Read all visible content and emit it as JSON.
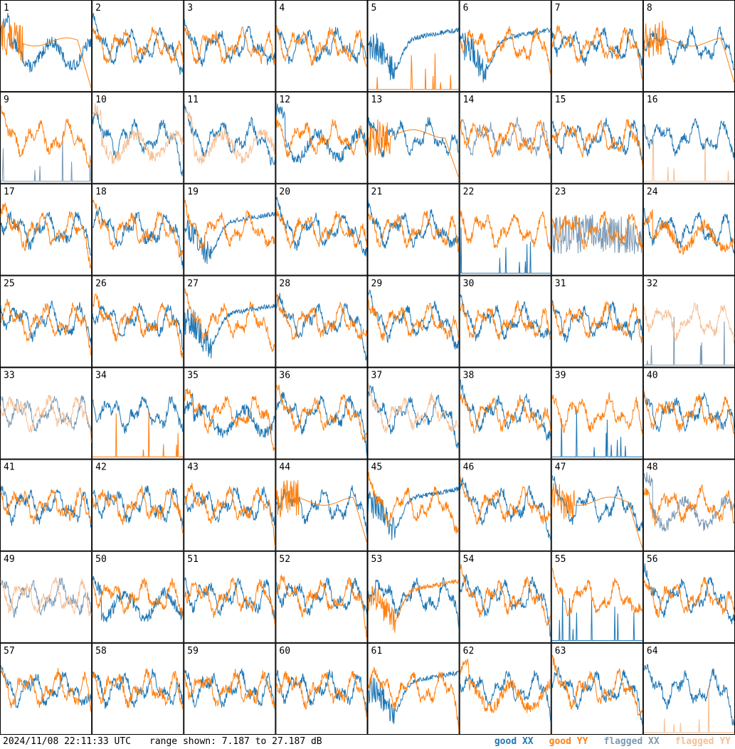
{
  "chart_data": {
    "type": "line",
    "layout": "8x8 small multiples of antenna spectra",
    "grid": "off",
    "ylim_db": [
      7.187,
      27.187
    ],
    "range_text": "range shown: 7.187 to 27.187 dB",
    "timestamp": "2024/11/08 22:11:33 UTC",
    "legend": [
      {
        "label": "good XX",
        "color": "#1f77b4"
      },
      {
        "label": "good YY",
        "color": "#ff7f0e"
      },
      {
        "label": "flagged XX",
        "color": "#7b99b3"
      },
      {
        "label": "flagged YY",
        "color": "#f6bf94"
      }
    ],
    "panels": [
      {
        "label": "1",
        "xx": "low",
        "yy": "droop"
      },
      {
        "label": "2"
      },
      {
        "label": "3"
      },
      {
        "label": "4"
      },
      {
        "label": "5",
        "xx": "dip",
        "yy": "dead"
      },
      {
        "label": "6",
        "xx": "dip"
      },
      {
        "label": "7"
      },
      {
        "label": "8",
        "yy": "droop"
      },
      {
        "label": "9",
        "xx": "dead",
        "xx_flag": true
      },
      {
        "label": "10",
        "yy_flag": true,
        "yy": "low"
      },
      {
        "label": "11",
        "yy_flag": true,
        "yy": "low"
      },
      {
        "label": "12",
        "xx": "low"
      },
      {
        "label": "13",
        "yy": "droop"
      },
      {
        "label": "14",
        "xx_flag": true
      },
      {
        "label": "15"
      },
      {
        "label": "16",
        "yy": "dead",
        "yy_flag": true
      },
      {
        "label": "17"
      },
      {
        "label": "18"
      },
      {
        "label": "19",
        "xx": "dip"
      },
      {
        "label": "20"
      },
      {
        "label": "21"
      },
      {
        "label": "22",
        "xx": "dead"
      },
      {
        "label": "23",
        "xx": "noisy",
        "xx_flag": true
      },
      {
        "label": "24",
        "yy": "low"
      },
      {
        "label": "25"
      },
      {
        "label": "26"
      },
      {
        "label": "27",
        "xx": "dip"
      },
      {
        "label": "28"
      },
      {
        "label": "29"
      },
      {
        "label": "30"
      },
      {
        "label": "31"
      },
      {
        "label": "32",
        "xx": "dead",
        "xx_flag": true,
        "yy_flag": true
      },
      {
        "label": "33",
        "xx_flag": true,
        "yy_flag": true
      },
      {
        "label": "34",
        "yy": "dead"
      },
      {
        "label": "35",
        "xx": "low"
      },
      {
        "label": "36"
      },
      {
        "label": "37",
        "yy_flag": true
      },
      {
        "label": "38"
      },
      {
        "label": "39",
        "xx": "dead"
      },
      {
        "label": "40"
      },
      {
        "label": "41"
      },
      {
        "label": "42"
      },
      {
        "label": "43"
      },
      {
        "label": "44",
        "yy": "droop"
      },
      {
        "label": "45",
        "xx": "dip"
      },
      {
        "label": "46"
      },
      {
        "label": "47",
        "yy": "droop"
      },
      {
        "label": "48",
        "xx_flag": true,
        "xx": "low"
      },
      {
        "label": "49",
        "xx_flag": true,
        "yy_flag": true
      },
      {
        "label": "50",
        "xx": "low"
      },
      {
        "label": "51"
      },
      {
        "label": "52"
      },
      {
        "label": "53",
        "yy": "dip"
      },
      {
        "label": "54"
      },
      {
        "label": "55",
        "xx": "dead"
      },
      {
        "label": "56"
      },
      {
        "label": "57"
      },
      {
        "label": "58"
      },
      {
        "label": "59"
      },
      {
        "label": "60"
      },
      {
        "label": "61",
        "xx": "dip"
      },
      {
        "label": "62",
        "yy": "low"
      },
      {
        "label": "63"
      },
      {
        "label": "64",
        "yy": "dead",
        "yy_flag": true
      }
    ]
  }
}
